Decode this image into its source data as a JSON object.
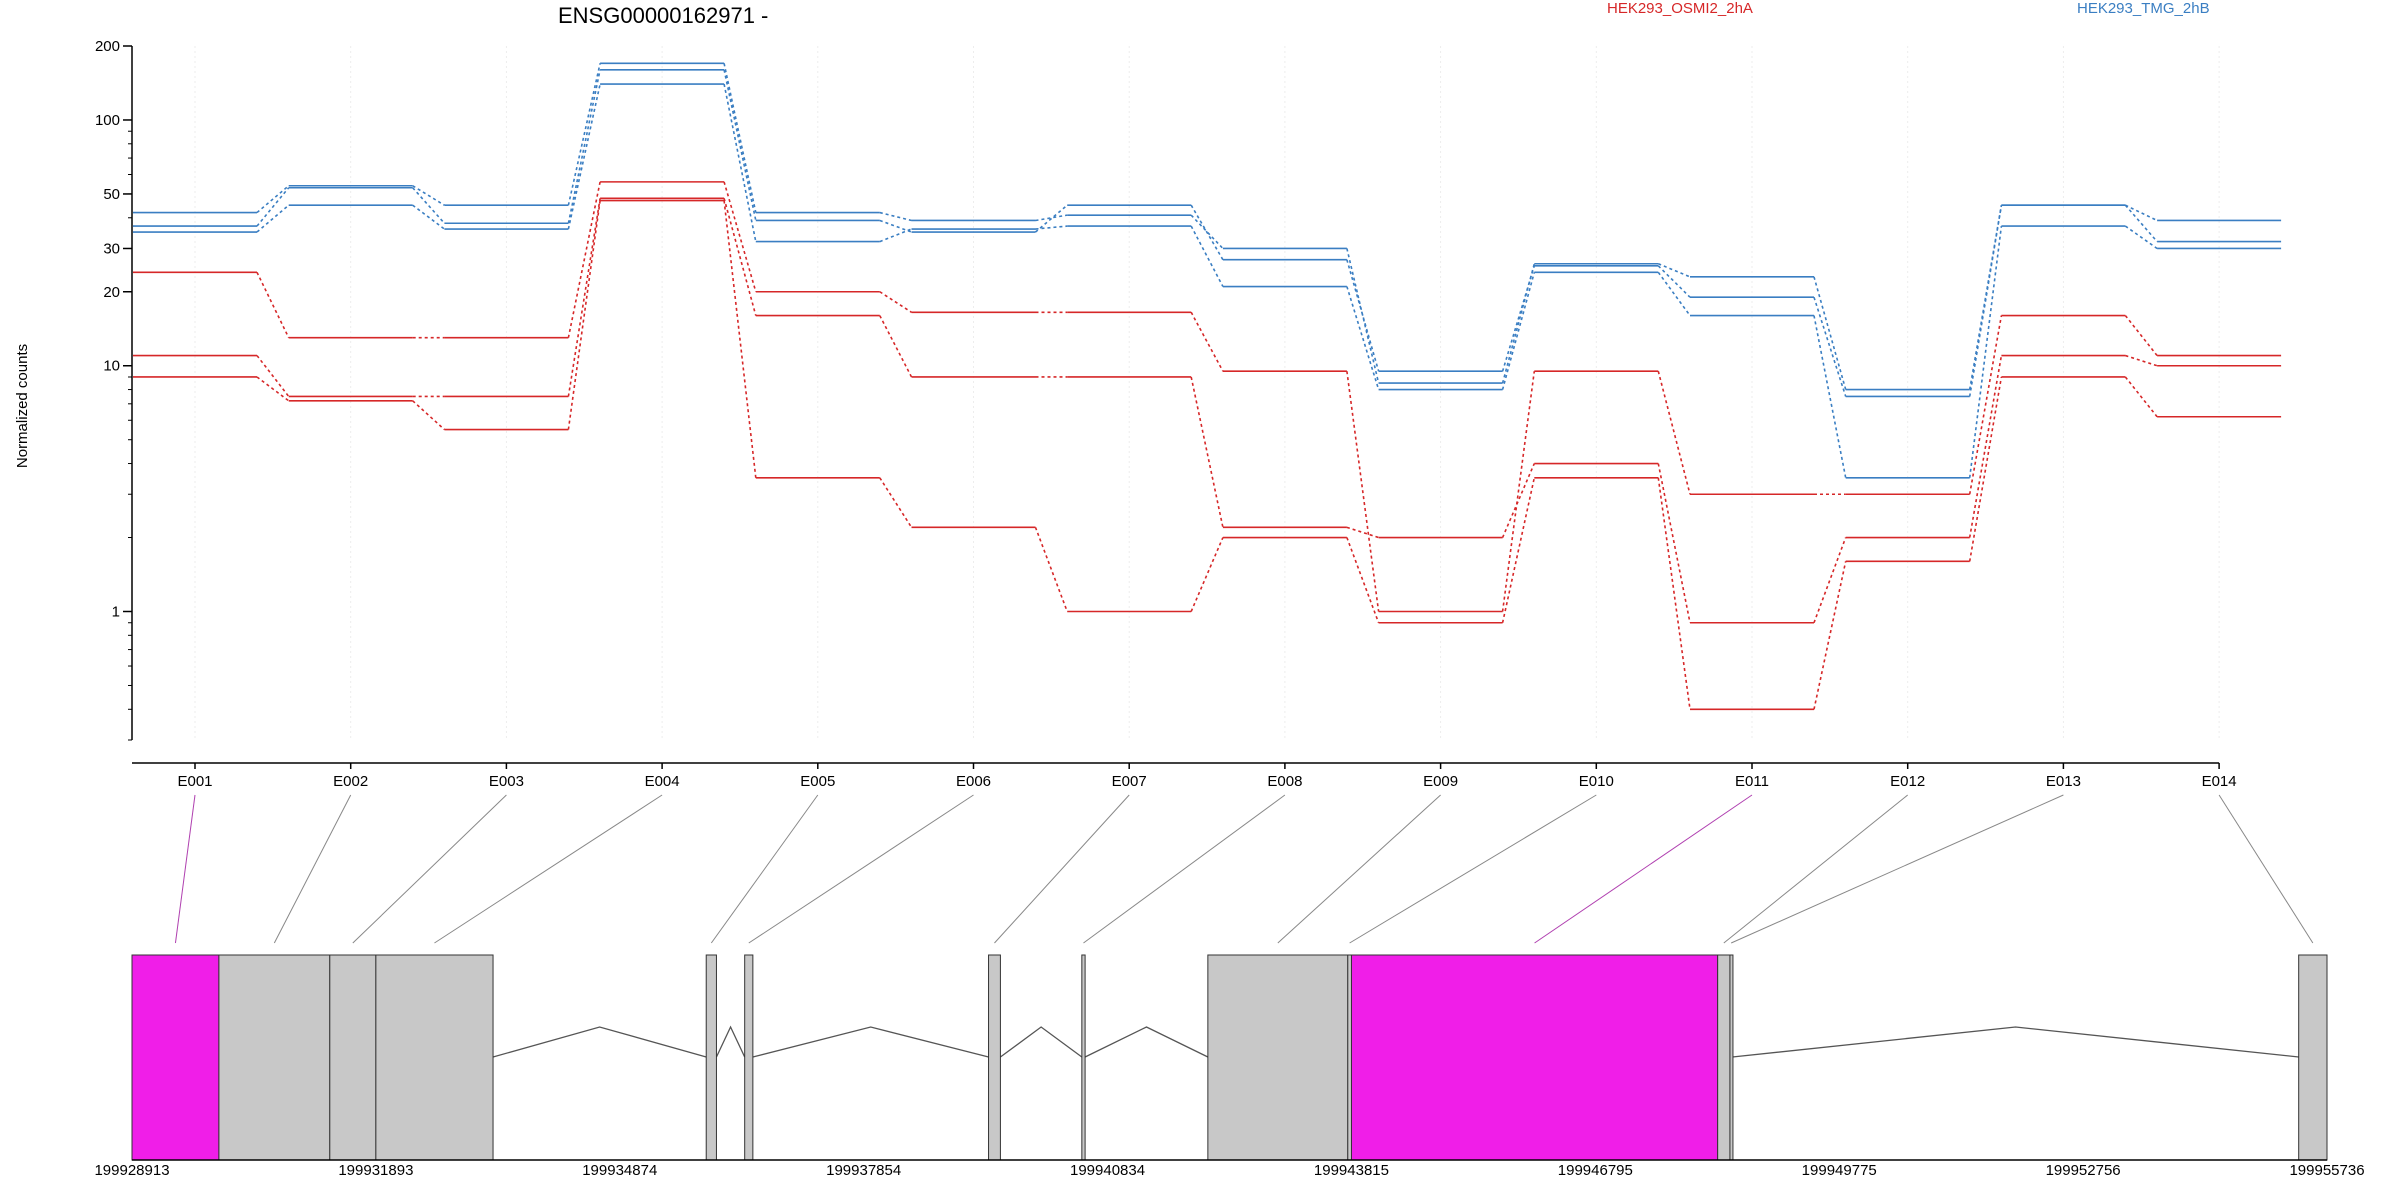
{
  "chart_data": {
    "type": "line",
    "title": "ENSG00000162971 -",
    "xlabel": "",
    "ylabel": "Normalized counts",
    "y_scale": "log",
    "ylim": [
      0.3,
      200
    ],
    "grid": false,
    "legend_position": "top-right",
    "y_ticks": [
      {
        "value": 200,
        "label": "200"
      },
      {
        "value": 100,
        "label": "100"
      },
      {
        "value": 50,
        "label": "50"
      },
      {
        "value": 30,
        "label": "30"
      },
      {
        "value": 20,
        "label": "20"
      },
      {
        "value": 10,
        "label": "10"
      },
      {
        "value": 1,
        "label": "1"
      }
    ],
    "categories": [
      "E001",
      "E002",
      "E003",
      "E004",
      "E005",
      "E006",
      "E007",
      "E008",
      "E009",
      "E010",
      "E011",
      "E012",
      "E013",
      "E014"
    ],
    "legend": [
      {
        "label": "HEK293_OSMI2_2hA",
        "color": "#d62728"
      },
      {
        "label": "HEK293_TMG_2hB",
        "color": "#3a7ec2"
      }
    ],
    "series": [
      {
        "group": "HEK293_TMG_2hB",
        "color": "#3a7ec2",
        "values": [
          42,
          54,
          45,
          170,
          42,
          39,
          41,
          30,
          8.5,
          26,
          23,
          8,
          45,
          39
        ]
      },
      {
        "group": "HEK293_TMG_2hB",
        "color": "#3a7ec2",
        "values": [
          37,
          53,
          38,
          160,
          39,
          35,
          45,
          27,
          9.5,
          25.5,
          19,
          7.5,
          45,
          32
        ]
      },
      {
        "group": "HEK293_TMG_2hB",
        "color": "#3a7ec2",
        "values": [
          35,
          45,
          36,
          140,
          32,
          36,
          37,
          21,
          8,
          24,
          16,
          3.5,
          37,
          30
        ]
      },
      {
        "group": "HEK293_OSMI2_2hA",
        "color": "#d62728",
        "values": [
          24,
          13,
          13,
          56,
          20,
          16.5,
          16.5,
          9.5,
          1.0,
          9.5,
          3.0,
          3.0,
          16,
          11
        ]
      },
      {
        "group": "HEK293_OSMI2_2hA",
        "color": "#d62728",
        "values": [
          11,
          7.5,
          7.5,
          48,
          16,
          9,
          9,
          2.2,
          2.0,
          4.0,
          0.9,
          2.0,
          11,
          10
        ]
      },
      {
        "group": "HEK293_OSMI2_2hA",
        "color": "#d62728",
        "values": [
          9,
          7.2,
          5.5,
          47,
          3.5,
          2.2,
          1.0,
          2.0,
          0.9,
          3.5,
          0.4,
          1.6,
          9,
          6.2
        ]
      }
    ],
    "gene_model": {
      "genomic_start": 199928913,
      "genomic_end": 199955736,
      "tick_labels": [
        "199928913",
        "199931893",
        "199934874",
        "199937854",
        "199940834",
        "199943815",
        "199946795",
        "199949775",
        "199952756",
        "199955736"
      ],
      "highlight_color": "#f01ee8",
      "exon_color": "#c8c8c8",
      "exons": [
        {
          "id": "E001",
          "start": 199928913,
          "end": 199929975,
          "highlighted": true
        },
        {
          "id": "E002",
          "start": 199929975,
          "end": 199931330,
          "highlighted": false
        },
        {
          "id": "E003",
          "start": 199931330,
          "end": 199931893,
          "highlighted": false
        },
        {
          "id": "E004",
          "start": 199931893,
          "end": 199933325,
          "highlighted": false
        },
        {
          "id": "E005",
          "start": 199935930,
          "end": 199936055,
          "highlighted": false
        },
        {
          "id": "E006",
          "start": 199936400,
          "end": 199936500,
          "highlighted": false
        },
        {
          "id": "E007",
          "start": 199939380,
          "end": 199939525,
          "highlighted": false
        },
        {
          "id": "E008",
          "start": 199940520,
          "end": 199940560,
          "highlighted": false
        },
        {
          "id": "E009",
          "start": 199942060,
          "end": 199943770,
          "highlighted": false
        },
        {
          "id": "E010",
          "start": 199943770,
          "end": 199943815,
          "highlighted": false
        },
        {
          "id": "E011",
          "start": 199943815,
          "end": 199948290,
          "highlighted": true
        },
        {
          "id": "E012",
          "start": 199948290,
          "end": 199948440,
          "highlighted": false
        },
        {
          "id": "E013",
          "start": 199948440,
          "end": 199948470,
          "highlighted": false
        },
        {
          "id": "E014",
          "start": 199955390,
          "end": 199955736,
          "highlighted": false
        }
      ],
      "introns": [
        {
          "start": 199933325,
          "end": 199935930
        },
        {
          "start": 199936055,
          "end": 199936400
        },
        {
          "start": 199936500,
          "end": 199939380
        },
        {
          "start": 199939525,
          "end": 199940520
        },
        {
          "start": 199940560,
          "end": 199942060
        },
        {
          "start": 199948470,
          "end": 199955390
        }
      ]
    }
  }
}
